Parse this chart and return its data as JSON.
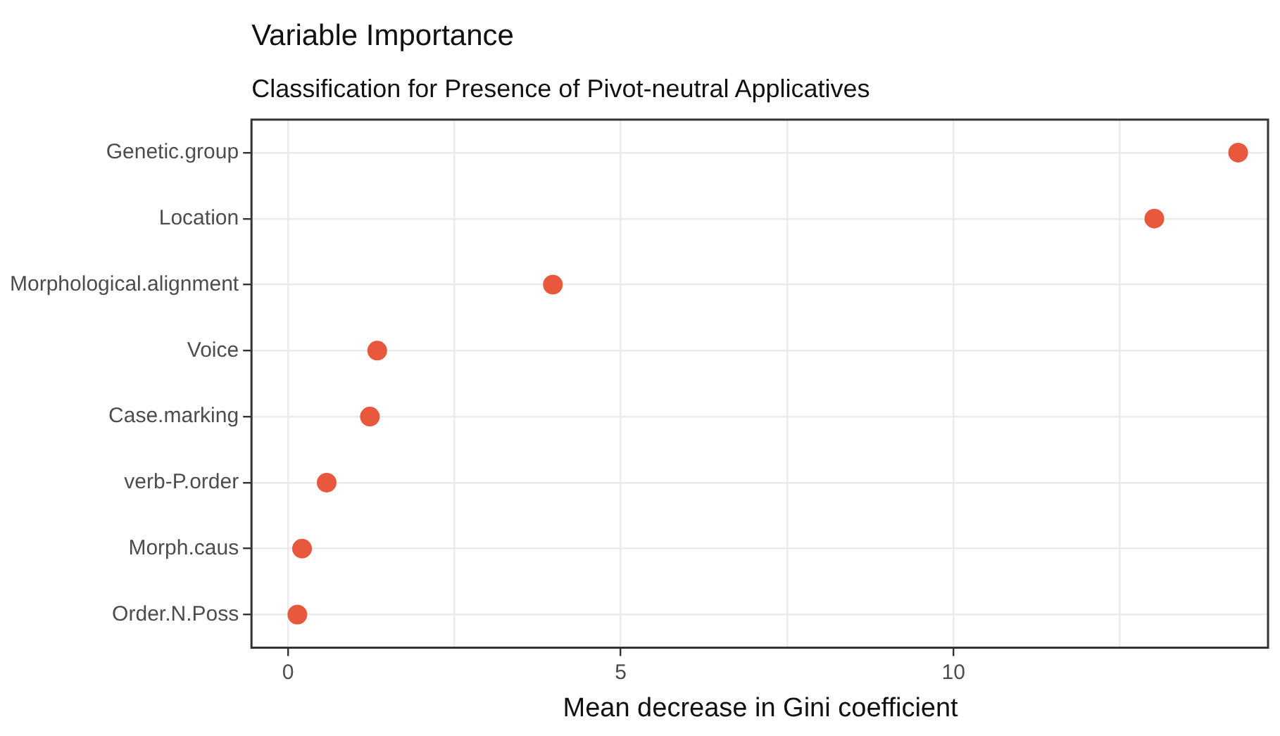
{
  "chart_data": {
    "type": "scatter",
    "orientation": "horizontal",
    "title": "Variable Importance",
    "subtitle": "Classification for Presence of Pivot-neutral Applicatives",
    "xlabel": "Mean decrease in Gini coefficient",
    "categories": [
      "Genetic.group",
      "Location",
      "Morphological.alignment",
      "Voice",
      "Case.marking",
      "verb-P.order",
      "Morph.caus",
      "Order.N.Poss"
    ],
    "values": [
      14.28,
      13.02,
      3.98,
      1.34,
      1.23,
      0.58,
      0.21,
      0.14
    ],
    "color": "#e8583c",
    "marker": "circle",
    "xlim": [
      -0.55,
      14.75
    ],
    "xticks": [
      0,
      {
        "value": 2.5,
        "label": null
      },
      5,
      {
        "value": 7.5,
        "label": null
      },
      10,
      {
        "value": 12.5,
        "label": null
      }
    ],
    "grid": true,
    "legend": false
  }
}
